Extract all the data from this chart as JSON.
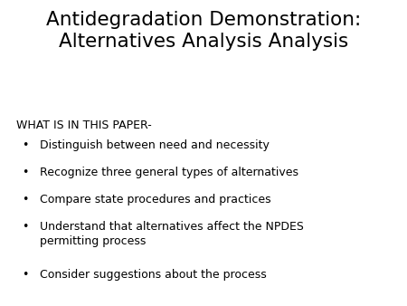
{
  "title_line1": "Antidegradation Demonstration:",
  "title_line2": "Alternatives Analysis Analysis",
  "section_header": "WHAT IS IN THIS PAPER-",
  "bullet_points": [
    "Distinguish between need and necessity",
    "Recognize three general types of alternatives",
    "Compare state procedures and practices",
    "Understand that alternatives affect the NPDES\npermitting process",
    "Consider suggestions about the process"
  ],
  "background_color": "#ffffff",
  "text_color": "#000000",
  "title_fontsize": 15.5,
  "header_fontsize": 9,
  "bullet_fontsize": 9,
  "title_font_family": "DejaVu Sans"
}
